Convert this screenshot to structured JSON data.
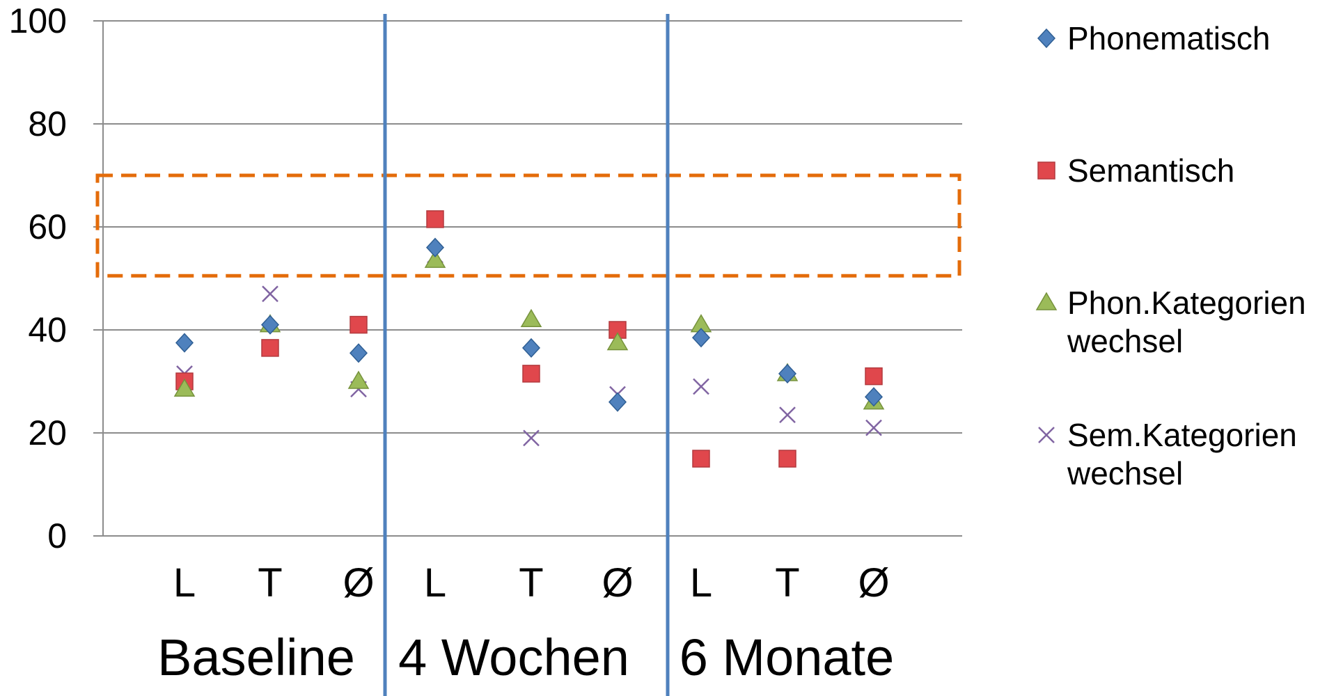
{
  "chart_data": {
    "type": "scatter",
    "title": "",
    "xlabel": "",
    "ylabel": "",
    "ylim": [
      0,
      100
    ],
    "y_ticks": [
      "0",
      "20",
      "40",
      "60",
      "80",
      "100"
    ],
    "grid": true,
    "legend_position": "right",
    "categories": [
      "L",
      "T",
      "Ø",
      "L",
      "T",
      "Ø",
      "L",
      "T",
      "Ø"
    ],
    "groups": [
      "Baseline",
      "4 Wochen",
      "6 Monate"
    ],
    "highlight_band": {
      "y_from": 50.5,
      "y_to": 70,
      "style": "dashed",
      "color": "#E46C0A"
    },
    "separator_color": "#4F81BD",
    "series": [
      {
        "name": "Phonematisch",
        "marker": "diamond",
        "color": "#4F81BD",
        "values": [
          37.5,
          41,
          35.5,
          56,
          36.5,
          26,
          38.5,
          31.5,
          27
        ]
      },
      {
        "name": "Semantisch",
        "marker": "square",
        "color": "#E0474C",
        "values": [
          30,
          36.5,
          41,
          61.5,
          31.5,
          40,
          15,
          15,
          31
        ]
      },
      {
        "name": "Phon.Kategorien wechsel",
        "name_lines": [
          "Phon.Kategorien",
          "wechsel"
        ],
        "marker": "triangle",
        "color": "#9BBB59",
        "values": [
          28.5,
          41,
          30,
          53.5,
          42,
          37.5,
          41,
          31.5,
          26
        ]
      },
      {
        "name": "Sem.Kategorien wechsel",
        "name_lines": [
          "Sem.Kategorien",
          "wechsel"
        ],
        "marker": "x",
        "color": "#8064A2",
        "values": [
          31.5,
          47,
          28.5,
          54.5,
          19,
          27.5,
          29,
          23.5,
          21
        ]
      }
    ]
  }
}
